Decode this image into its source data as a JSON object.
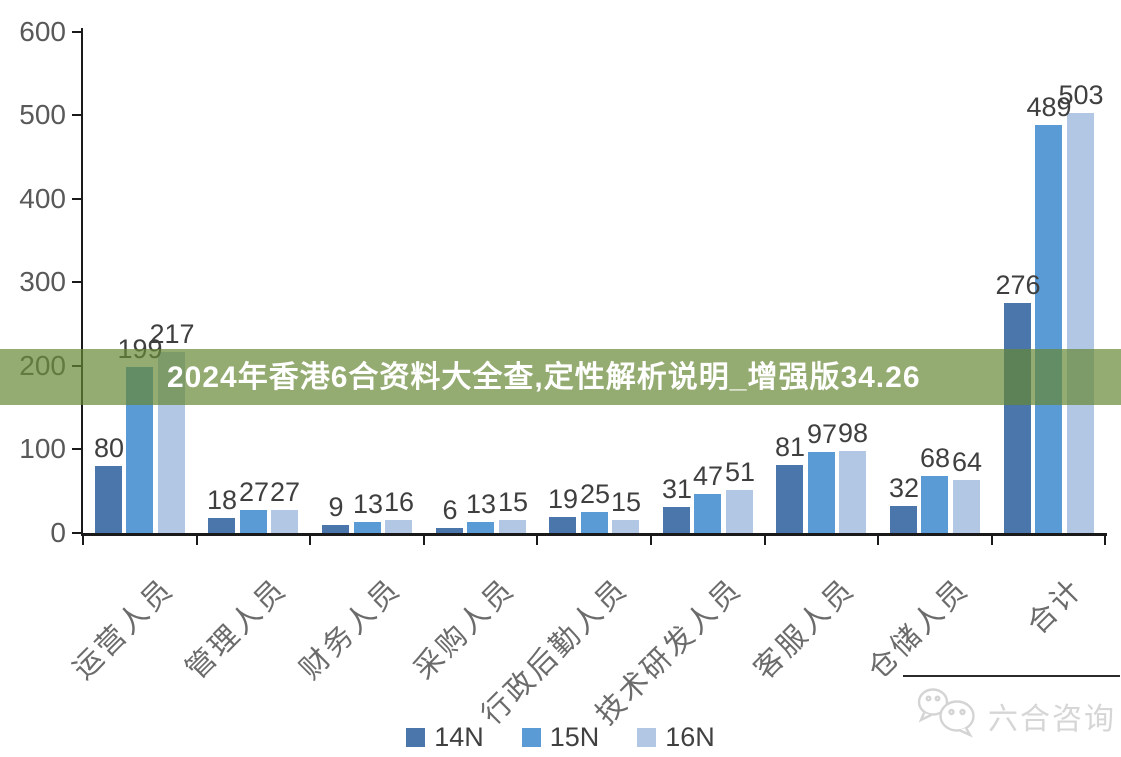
{
  "banner": {
    "text": "2024年香港6合资料大全查,定性解析说明_增强版34.26",
    "bg_color": "rgba(103,136,53,0.70)",
    "text_color": "#ffffff"
  },
  "chart_data": {
    "type": "bar",
    "title": "",
    "categories": [
      "运营人员",
      "管理人员",
      "财务人员",
      "采购人员",
      "行政后勤人员",
      "技术研发人员",
      "客服人员",
      "仓储人员",
      "合计"
    ],
    "series": [
      {
        "name": "14N",
        "color": "#4a76ac",
        "values": [
          80,
          18,
          9,
          6,
          19,
          31,
          81,
          32,
          276
        ]
      },
      {
        "name": "15N",
        "color": "#5b9bd5",
        "values": [
          199,
          27,
          13,
          13,
          25,
          47,
          97,
          68,
          489
        ]
      },
      {
        "name": "16N",
        "color": "#b2c7e3",
        "values": [
          217,
          27,
          16,
          15,
          15,
          51,
          98,
          64,
          503
        ]
      }
    ],
    "xlabel": "",
    "ylabel": "",
    "ylim": [
      0,
      600
    ],
    "yticks": [
      0,
      100,
      200,
      300,
      400,
      500,
      600
    ],
    "grid": false,
    "bar_value_labels": true,
    "legend_position": "bottom"
  },
  "watermark": {
    "text": "六合咨询",
    "icon": "wechat-bubbles-icon"
  },
  "colors": {
    "axis": "#1a1a1a",
    "y_tick_label": "#595959",
    "value_label": "#3f3f3f",
    "category_label": "#6b6b6b",
    "legend_label": "#404040",
    "watermark_gray": "#d6d6d6"
  }
}
